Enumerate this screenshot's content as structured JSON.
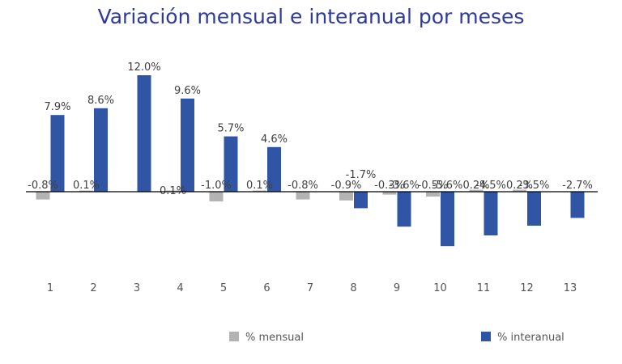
{
  "chart_data": {
    "type": "bar",
    "title": "Variación mensual e interanual por meses",
    "categories": [
      "1",
      "2",
      "3",
      "4",
      "5",
      "6",
      "7",
      "8",
      "9",
      "10",
      "11",
      "12",
      "13"
    ],
    "series": [
      {
        "name": "% mensual",
        "color": "#b3b3b3",
        "values": [
          -0.8,
          0.1,
          null,
          0.1,
          -1.0,
          0.1,
          -0.8,
          -0.9,
          -0.3,
          -0.5,
          0.2,
          0.2,
          null
        ],
        "labels": [
          "-0.8%",
          "0.1%",
          "",
          "0.1%",
          "-1.0%",
          "0.1%",
          "-0.8%",
          "-0.9%",
          "-0.3%",
          "-0.5%",
          "0.2%",
          "0.2%",
          ""
        ]
      },
      {
        "name": "% interanual",
        "color": "#2f55a4",
        "values": [
          7.9,
          8.6,
          12.0,
          9.6,
          5.7,
          4.6,
          null,
          -1.7,
          -3.6,
          -5.6,
          -4.5,
          -3.5,
          -2.7
        ],
        "labels": [
          "7.9%",
          "8.6%",
          "12.0%",
          "9.6%",
          "5.7%",
          "4.6%",
          "",
          "-1.7%",
          "-3.6%",
          "-5.6%",
          "-4.5%",
          "-3.5%",
          "-2.7%"
        ]
      }
    ],
    "ylim": [
      -7,
      12.5
    ],
    "grid": false,
    "legend_position": "bottom"
  }
}
